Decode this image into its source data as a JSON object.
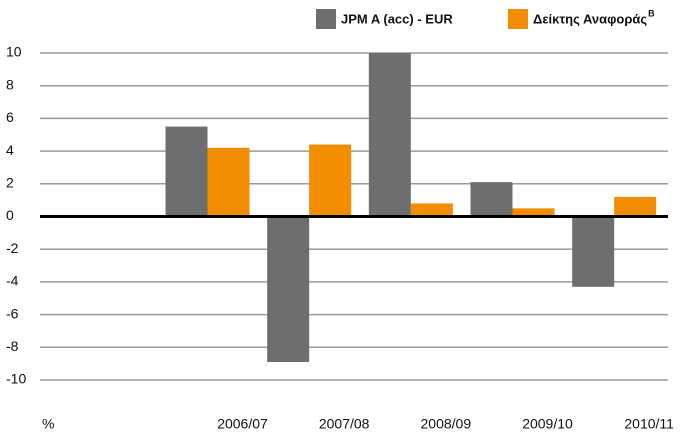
{
  "chart_data": {
    "type": "bar",
    "categories": [
      null,
      "2006/07",
      "2007/08",
      "2008/09",
      "2009/10",
      "2010/11"
    ],
    "y_unit": "%",
    "series": [
      {
        "name": "JPM A (acc) - EUR",
        "color": "#6d6e70",
        "values": [
          null,
          5.5,
          -8.9,
          10,
          2.1,
          -4.3
        ]
      },
      {
        "name": "Δείκτης Αναφοράς",
        "name_superscript": "B",
        "color": "#f28c00",
        "values": [
          null,
          4.2,
          4.4,
          0.8,
          0.5,
          1.2
        ]
      }
    ],
    "ylim": [
      -10,
      10
    ],
    "yticks": [
      -10,
      -8,
      -6,
      -4,
      -2,
      0,
      2,
      4,
      6,
      8,
      10
    ],
    "grid": true,
    "legend": "top-right"
  }
}
